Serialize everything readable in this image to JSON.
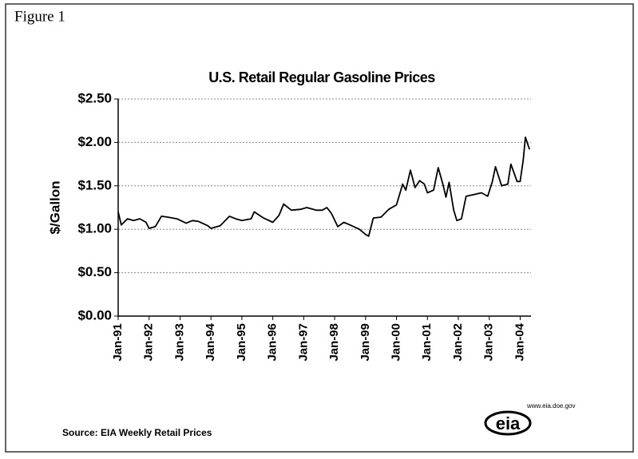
{
  "figure_label": "Figure 1",
  "chart_data": {
    "type": "line",
    "title": "U.S. Retail Regular Gasoline Prices",
    "y_label": "$/Gallon",
    "source": "Source: EIA Weekly Retail Prices",
    "logo_text": "eia",
    "logo_url": "www.eia.doe.gov",
    "xlim": [
      1991,
      2004.35
    ],
    "ylim": [
      0,
      2.5
    ],
    "xticks": [
      {
        "value": 1991,
        "label": "Jan-91"
      },
      {
        "value": 1992,
        "label": "Jan-92"
      },
      {
        "value": 1993,
        "label": "Jan-93"
      },
      {
        "value": 1994,
        "label": "Jan-94"
      },
      {
        "value": 1995,
        "label": "Jan-95"
      },
      {
        "value": 1996,
        "label": "Jan-96"
      },
      {
        "value": 1997,
        "label": "Jan-97"
      },
      {
        "value": 1998,
        "label": "Jan-98"
      },
      {
        "value": 1999,
        "label": "Jan-99"
      },
      {
        "value": 2000,
        "label": "Jan-00"
      },
      {
        "value": 2001,
        "label": "Jan-01"
      },
      {
        "value": 2002,
        "label": "Jan-02"
      },
      {
        "value": 2003,
        "label": "Jan-03"
      },
      {
        "value": 2004,
        "label": "Jan-04"
      }
    ],
    "yticks": [
      {
        "value": 0,
        "label": "$0.00"
      },
      {
        "value": 0.5,
        "label": "$0.50"
      },
      {
        "value": 1,
        "label": "$1.00"
      },
      {
        "value": 1.5,
        "label": "$1.50"
      },
      {
        "value": 2,
        "label": "$2.00"
      },
      {
        "value": 2.5,
        "label": "$2.50"
      }
    ],
    "grid": true,
    "color": "#000000",
    "x": [
      1991.0,
      1991.1,
      1991.3,
      1991.5,
      1991.7,
      1991.9,
      1992.0,
      1992.2,
      1992.4,
      1992.6,
      1992.9,
      1993.2,
      1993.4,
      1993.6,
      1993.9,
      1994.0,
      1994.3,
      1994.6,
      1994.8,
      1995.0,
      1995.3,
      1995.4,
      1995.7,
      1996.0,
      1996.2,
      1996.35,
      1996.6,
      1996.9,
      1997.1,
      1997.4,
      1997.6,
      1997.75,
      1997.9,
      1998.1,
      1998.3,
      1998.5,
      1998.8,
      1999.0,
      1999.1,
      1999.25,
      1999.5,
      1999.75,
      2000.0,
      2000.2,
      2000.3,
      2000.45,
      2000.6,
      2000.75,
      2000.9,
      2001.0,
      2001.2,
      2001.35,
      2001.5,
      2001.6,
      2001.7,
      2001.85,
      2001.95,
      2002.1,
      2002.25,
      2002.5,
      2002.75,
      2002.95,
      2003.1,
      2003.2,
      2003.4,
      2003.6,
      2003.7,
      2003.9,
      2004.0,
      2004.1,
      2004.17,
      2004.3
    ],
    "values": [
      1.2,
      1.05,
      1.12,
      1.1,
      1.12,
      1.08,
      1.01,
      1.03,
      1.15,
      1.14,
      1.12,
      1.07,
      1.1,
      1.09,
      1.04,
      1.01,
      1.04,
      1.15,
      1.12,
      1.1,
      1.12,
      1.2,
      1.13,
      1.08,
      1.16,
      1.29,
      1.22,
      1.23,
      1.25,
      1.22,
      1.22,
      1.25,
      1.18,
      1.03,
      1.08,
      1.05,
      1.0,
      0.94,
      0.92,
      1.13,
      1.14,
      1.23,
      1.28,
      1.52,
      1.45,
      1.68,
      1.48,
      1.56,
      1.52,
      1.42,
      1.45,
      1.71,
      1.52,
      1.37,
      1.54,
      1.22,
      1.1,
      1.12,
      1.38,
      1.4,
      1.42,
      1.38,
      1.55,
      1.72,
      1.5,
      1.52,
      1.75,
      1.55,
      1.55,
      1.8,
      2.06,
      1.92
    ]
  }
}
